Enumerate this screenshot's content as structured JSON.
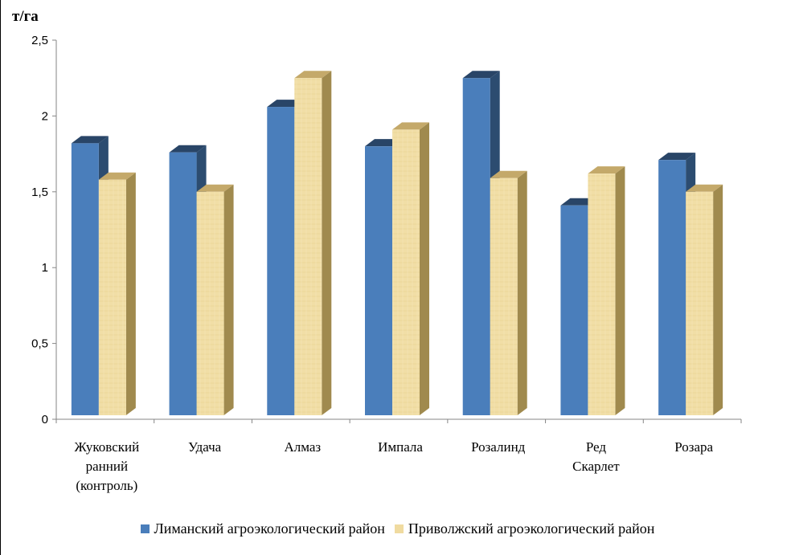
{
  "chart_data": {
    "type": "bar",
    "ylabel": "т/га",
    "ylim": [
      0,
      2.5
    ],
    "yticks": [
      "0",
      "0,5",
      "1",
      "1,5",
      "2",
      "2,5"
    ],
    "categories": [
      [
        "Жуковский",
        "ранний",
        "(контроль)"
      ],
      [
        "Удача"
      ],
      [
        "Алмаз"
      ],
      [
        "Импала"
      ],
      [
        "Розалинд"
      ],
      [
        "Ред",
        "Скарлет"
      ],
      [
        "Розара"
      ]
    ],
    "series": [
      {
        "name": "Лиманский агроэкологический район",
        "color": "#4a7ebb",
        "values": [
          1.82,
          1.76,
          2.06,
          1.8,
          2.25,
          1.41,
          1.71
        ]
      },
      {
        "name": "Приволжский агроэкологический район",
        "color": "#f0dba0",
        "values": [
          1.58,
          1.5,
          2.25,
          1.91,
          1.59,
          1.62,
          1.5
        ]
      }
    ],
    "grid": false,
    "legend": "bottom",
    "style": "3d-clustered"
  }
}
